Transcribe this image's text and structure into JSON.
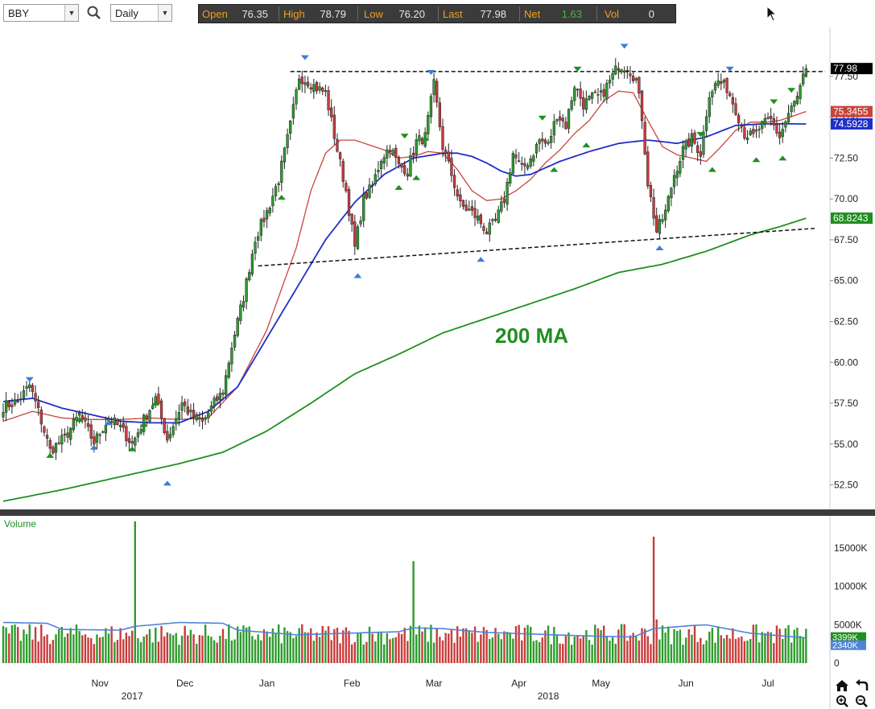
{
  "toolbar": {
    "symbol": "BBY",
    "interval": "Daily",
    "quote": {
      "open_label": "Open",
      "open": "76.35",
      "high_label": "High",
      "high": "78.79",
      "low_label": "Low",
      "low": "76.20",
      "last_label": "Last",
      "last": "77.98",
      "net_label": "Net",
      "net": "1.63",
      "vol_label": "Vol",
      "vol": "0"
    }
  },
  "colors": {
    "up": "#2e9b2e",
    "down": "#c83c3c",
    "ma20": "#c8453c",
    "ma50": "#1f2fc8",
    "ma200": "#1f8f1f",
    "vol_ma": "#4f84d8",
    "marker_green": "#1f8f1f",
    "marker_blue": "#3a7fd8"
  },
  "chart_data": [
    {
      "type": "candlestick",
      "annotation": "200 MA",
      "y_ticks": [
        "52.50",
        "55.00",
        "57.50",
        "60.00",
        "62.50",
        "65.00",
        "67.50",
        "70.00",
        "72.50",
        "75.00",
        "77.50"
      ],
      "ylim": [
        51.0,
        80.5
      ],
      "x_month_labels": [
        "Nov",
        "Dec",
        "Jan",
        "Feb",
        "Mar",
        "Apr",
        "May",
        "Jun",
        "Jul"
      ],
      "x_year_labels": [
        "2017",
        "2018"
      ],
      "price_badges": [
        {
          "label": "77.98",
          "value": 77.98,
          "color": "#000000"
        },
        {
          "label": "75.3455",
          "value": 75.3455,
          "color": "#c8453c"
        },
        {
          "label": "74.5928",
          "value": 74.5928,
          "color": "#1f2fc8"
        },
        {
          "label": "68.8243",
          "value": 68.8243,
          "color": "#1f8f1f"
        }
      ],
      "resistance_line": {
        "value": 77.8
      },
      "support_line": {
        "start_value": 65.9,
        "end_value": 68.2
      },
      "anchors": [
        [
          0,
          57.3
        ],
        [
          5,
          57.6
        ],
        [
          9,
          58.6
        ],
        [
          12,
          57.0
        ],
        [
          16,
          54.6
        ],
        [
          21,
          55.4
        ],
        [
          26,
          56.8
        ],
        [
          31,
          55.1
        ],
        [
          36,
          56.6
        ],
        [
          40,
          56.0
        ],
        [
          44,
          55.0
        ],
        [
          48,
          56.5
        ],
        [
          52,
          57.8
        ],
        [
          56,
          55.3
        ],
        [
          61,
          57.5
        ],
        [
          64,
          56.8
        ],
        [
          68,
          56.3
        ],
        [
          72,
          57.5
        ],
        [
          75,
          58.2
        ],
        [
          78,
          61.0
        ],
        [
          82,
          64.0
        ],
        [
          86,
          67.6
        ],
        [
          90,
          69.2
        ],
        [
          94,
          71.2
        ],
        [
          98,
          74.5
        ],
        [
          101,
          77.5
        ],
        [
          104,
          77.2
        ],
        [
          107,
          76.8
        ],
        [
          110,
          76.5
        ],
        [
          114,
          73.0
        ],
        [
          117,
          70.5
        ],
        [
          120,
          67.0
        ],
        [
          123,
          70.0
        ],
        [
          126,
          70.8
        ],
        [
          129,
          72.5
        ],
        [
          132,
          73.2
        ],
        [
          135,
          72.0
        ],
        [
          138,
          71.8
        ],
        [
          141,
          73.5
        ],
        [
          144,
          73.8
        ],
        [
          147,
          77.0
        ],
        [
          150,
          73.2
        ],
        [
          153,
          71.5
        ],
        [
          156,
          69.6
        ],
        [
          159,
          69.3
        ],
        [
          162,
          68.8
        ],
        [
          165,
          68.0
        ],
        [
          168,
          68.6
        ],
        [
          171,
          70.0
        ],
        [
          174,
          72.8
        ],
        [
          177,
          71.8
        ],
        [
          180,
          72.5
        ],
        [
          183,
          73.6
        ],
        [
          186,
          73.3
        ],
        [
          189,
          75.2
        ],
        [
          192,
          74.5
        ],
        [
          195,
          77.0
        ],
        [
          198,
          75.8
        ],
        [
          201,
          76.2
        ],
        [
          204,
          76.3
        ],
        [
          207,
          77.2
        ],
        [
          210,
          78.2
        ],
        [
          213,
          78.1
        ],
        [
          216,
          77.3
        ],
        [
          218,
          75.0
        ],
        [
          220,
          71.0
        ],
        [
          223,
          68.0
        ],
        [
          226,
          69.2
        ],
        [
          229,
          71.5
        ],
        [
          232,
          73.0
        ],
        [
          235,
          73.7
        ],
        [
          238,
          72.8
        ],
        [
          241,
          76.5
        ],
        [
          244,
          77.2
        ],
        [
          247,
          76.8
        ],
        [
          250,
          75.5
        ],
        [
          253,
          74.0
        ],
        [
          256,
          73.8
        ],
        [
          259,
          74.5
        ],
        [
          262,
          74.8
        ],
        [
          265,
          73.8
        ],
        [
          268,
          75.2
        ],
        [
          271,
          76.2
        ],
        [
          274,
          77.98
        ]
      ],
      "moving_averages": [
        {
          "name": "20",
          "color": "#c8453c",
          "points": [
            [
              0,
              56.4
            ],
            [
              10,
              57.0
            ],
            [
              20,
              56.6
            ],
            [
              30,
              56.5
            ],
            [
              40,
              56.5
            ],
            [
              50,
              56.6
            ],
            [
              60,
              56.5
            ],
            [
              70,
              56.6
            ],
            [
              80,
              58.5
            ],
            [
              90,
              62.0
            ],
            [
              100,
              67.0
            ],
            [
              105,
              70.5
            ],
            [
              110,
              72.8
            ],
            [
              115,
              73.6
            ],
            [
              120,
              73.6
            ],
            [
              125,
              73.3
            ],
            [
              130,
              73.0
            ],
            [
              135,
              72.5
            ],
            [
              140,
              72.6
            ],
            [
              145,
              72.9
            ],
            [
              150,
              72.8
            ],
            [
              155,
              71.8
            ],
            [
              160,
              70.5
            ],
            [
              165,
              69.9
            ],
            [
              170,
              70.0
            ],
            [
              175,
              70.5
            ],
            [
              180,
              71.2
            ],
            [
              185,
              72.2
            ],
            [
              190,
              73.0
            ],
            [
              195,
              74.0
            ],
            [
              200,
              74.8
            ],
            [
              205,
              76.0
            ],
            [
              210,
              76.6
            ],
            [
              215,
              76.5
            ],
            [
              220,
              74.8
            ],
            [
              225,
              73.2
            ],
            [
              230,
              72.7
            ],
            [
              235,
              72.5
            ],
            [
              240,
              72.3
            ],
            [
              245,
              73.2
            ],
            [
              250,
              74.2
            ],
            [
              255,
              74.7
            ],
            [
              260,
              74.7
            ],
            [
              265,
              74.8
            ],
            [
              270,
              75.1
            ],
            [
              274,
              75.35
            ]
          ]
        },
        {
          "name": "50",
          "color": "#1f2fc8",
          "points": [
            [
              0,
              57.6
            ],
            [
              10,
              57.8
            ],
            [
              20,
              57.2
            ],
            [
              30,
              56.8
            ],
            [
              40,
              56.4
            ],
            [
              50,
              56.3
            ],
            [
              60,
              56.3
            ],
            [
              70,
              57.0
            ],
            [
              80,
              58.5
            ],
            [
              90,
              61.5
            ],
            [
              100,
              64.5
            ],
            [
              110,
              67.5
            ],
            [
              120,
              69.8
            ],
            [
              130,
              71.5
            ],
            [
              140,
              72.5
            ],
            [
              150,
              72.8
            ],
            [
              155,
              72.8
            ],
            [
              160,
              72.6
            ],
            [
              165,
              72.2
            ],
            [
              170,
              71.7
            ],
            [
              175,
              71.4
            ],
            [
              180,
              71.5
            ],
            [
              185,
              71.9
            ],
            [
              190,
              72.3
            ],
            [
              200,
              72.9
            ],
            [
              210,
              73.4
            ],
            [
              220,
              73.6
            ],
            [
              230,
              73.4
            ],
            [
              240,
              73.8
            ],
            [
              250,
              74.5
            ],
            [
              260,
              74.6
            ],
            [
              274,
              74.59
            ]
          ]
        },
        {
          "name": "200",
          "color": "#1f8f1f",
          "points": [
            [
              0,
              51.5
            ],
            [
              20,
              52.2
            ],
            [
              40,
              53.0
            ],
            [
              60,
              53.8
            ],
            [
              75,
              54.5
            ],
            [
              90,
              55.8
            ],
            [
              105,
              57.5
            ],
            [
              120,
              59.3
            ],
            [
              135,
              60.5
            ],
            [
              150,
              61.8
            ],
            [
              165,
              62.7
            ],
            [
              180,
              63.6
            ],
            [
              195,
              64.5
            ],
            [
              210,
              65.5
            ],
            [
              225,
              66.0
            ],
            [
              240,
              66.8
            ],
            [
              255,
              67.8
            ],
            [
              265,
              68.3
            ],
            [
              274,
              68.82
            ]
          ]
        }
      ],
      "swing_markers": [
        {
          "idx": 9,
          "type": "high",
          "value": 58.6
        },
        {
          "idx": 16,
          "type": "low",
          "value": 54.6
        },
        {
          "idx": 26,
          "type": "low",
          "value": 56.8
        },
        {
          "idx": 31,
          "type": "low",
          "value": 55.1
        },
        {
          "idx": 36,
          "type": "low",
          "value": 56.6
        },
        {
          "idx": 44,
          "type": "low",
          "value": 55.0
        },
        {
          "idx": 48,
          "type": "low",
          "value": 56.5
        },
        {
          "idx": 52,
          "type": "low",
          "value": 57.8
        },
        {
          "idx": 56,
          "type": "low",
          "value": 52.9
        },
        {
          "idx": 95,
          "type": "low",
          "value": 70.4
        },
        {
          "idx": 103,
          "type": "high",
          "value": 78.3
        },
        {
          "idx": 121,
          "type": "low",
          "value": 65.6
        },
        {
          "idx": 135,
          "type": "low",
          "value": 71.0
        },
        {
          "idx": 137,
          "type": "low",
          "value": 73.5
        },
        {
          "idx": 141,
          "type": "low",
          "value": 71.6
        },
        {
          "idx": 146,
          "type": "high",
          "value": 77.4
        },
        {
          "idx": 144,
          "type": "low",
          "value": 74.0
        },
        {
          "idx": 163,
          "type": "low",
          "value": 66.6
        },
        {
          "idx": 184,
          "type": "low",
          "value": 74.6
        },
        {
          "idx": 188,
          "type": "low",
          "value": 72.1
        },
        {
          "idx": 196,
          "type": "low",
          "value": 77.6
        },
        {
          "idx": 199,
          "type": "low",
          "value": 73.6
        },
        {
          "idx": 212,
          "type": "high",
          "value": 79.0
        },
        {
          "idx": 224,
          "type": "low",
          "value": 67.3
        },
        {
          "idx": 238,
          "type": "low",
          "value": 73.6
        },
        {
          "idx": 242,
          "type": "low",
          "value": 72.1
        },
        {
          "idx": 248,
          "type": "high",
          "value": 77.6
        },
        {
          "idx": 257,
          "type": "low",
          "value": 72.7
        },
        {
          "idx": 263,
          "type": "low",
          "value": 75.6
        },
        {
          "idx": 266,
          "type": "low",
          "value": 72.8
        },
        {
          "idx": 269,
          "type": "low",
          "value": 76.3
        }
      ]
    },
    {
      "type": "bar",
      "title": "Volume",
      "y_ticks": [
        "15000K",
        "10000K",
        "5000K",
        "0"
      ],
      "ylim": [
        0,
        19000
      ],
      "vol_badges": [
        {
          "label": "3399K",
          "value": 3399
        },
        {
          "label": "2340K",
          "value": 2340
        }
      ],
      "spikes": [
        {
          "idx": 45,
          "value": 18500
        },
        {
          "idx": 140,
          "value": 13300
        },
        {
          "idx": 222,
          "value": 16500
        },
        {
          "idx": 223,
          "value": 5700
        }
      ],
      "volume_ma_points": [
        [
          0,
          5300
        ],
        [
          15,
          5200
        ],
        [
          20,
          4400
        ],
        [
          40,
          4300
        ],
        [
          45,
          4800
        ],
        [
          60,
          5300
        ],
        [
          75,
          5200
        ],
        [
          80,
          4300
        ],
        [
          100,
          3700
        ],
        [
          135,
          4100
        ],
        [
          140,
          4600
        ],
        [
          150,
          4500
        ],
        [
          165,
          4000
        ],
        [
          195,
          3600
        ],
        [
          215,
          3400
        ],
        [
          222,
          4500
        ],
        [
          235,
          4900
        ],
        [
          240,
          5000
        ],
        [
          255,
          3900
        ],
        [
          274,
          3300
        ]
      ]
    }
  ]
}
